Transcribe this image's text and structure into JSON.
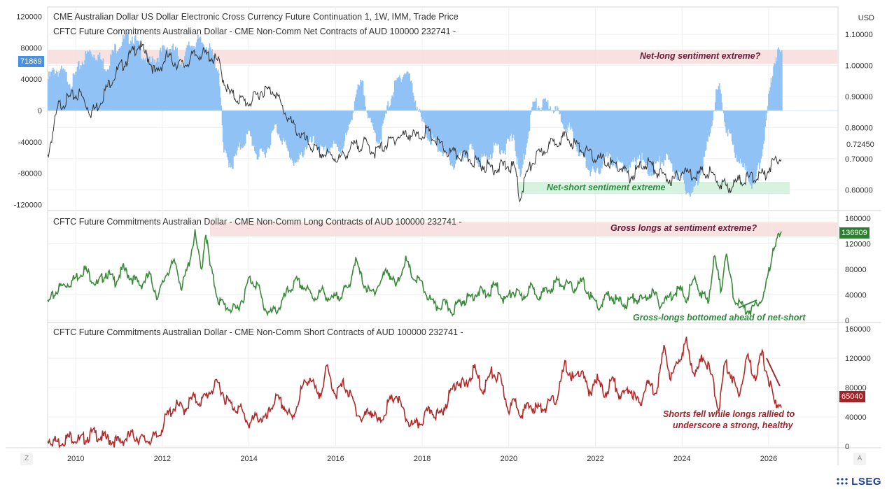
{
  "chart_data": [
    {
      "type": "bar",
      "panel": "net",
      "title": "CME Australian Dollar US Dollar Electronic Cross Currency Future Continuation 1, 1W, IMM, Trade Price",
      "subtitle": "CFTC Future Commitments Australian Dollar - CME Non-Comm Net Contracts of AUD 100000 232741 -",
      "left_axis": {
        "range": [
          -125000,
          125000
        ],
        "ticks": [
          "120000",
          "80000",
          "40000",
          "0",
          "-40000",
          "-80000",
          "-120000"
        ],
        "tick_values": [
          120000,
          80000,
          40000,
          0,
          -40000,
          -80000,
          -120000
        ]
      },
      "right_axis": {
        "label": "USD",
        "range": [
          0.54,
          1.17
        ],
        "ticks": [
          "1.10000",
          "1.00000",
          "0.90000",
          "0.80000",
          "0.70000",
          "0.60000"
        ],
        "tick_values": [
          1.1,
          1.0,
          0.9,
          0.8,
          0.7,
          0.6
        ]
      },
      "last_value_left": "71869",
      "last_value_right": "0.72450",
      "series": [
        {
          "name": "Net Contracts",
          "color": "#90c2f5",
          "x": [
            2009.35,
            2009.5,
            2009.7,
            2009.9,
            2010.1,
            2010.3,
            2010.5,
            2010.7,
            2010.9,
            2011.1,
            2011.3,
            2011.5,
            2011.7,
            2011.9,
            2012.1,
            2012.3,
            2012.45,
            2012.6,
            2012.8,
            2013.0,
            2013.15,
            2013.3,
            2013.4,
            2013.6,
            2013.8,
            2014.0,
            2014.2,
            2014.4,
            2014.6,
            2014.75,
            2014.9,
            2015.1,
            2015.3,
            2015.5,
            2015.7,
            2015.9,
            2016.1,
            2016.3,
            2016.45,
            2016.6,
            2016.8,
            2017.0,
            2017.2,
            2017.35,
            2017.5,
            2017.65,
            2017.8,
            2017.95,
            2018.1,
            2018.3,
            2018.5,
            2018.7,
            2018.9,
            2019.1,
            2019.3,
            2019.5,
            2019.7,
            2019.9,
            2020.1,
            2020.25,
            2020.4,
            2020.55,
            2020.7,
            2020.85,
            2021.0,
            2021.2,
            2021.4,
            2021.6,
            2021.8,
            2022.0,
            2022.2,
            2022.4,
            2022.6,
            2022.8,
            2023.0,
            2023.2,
            2023.4,
            2023.6,
            2023.8,
            2024.0,
            2024.2,
            2024.4,
            2024.6,
            2024.75,
            2024.85,
            2025.0,
            2025.2,
            2025.35,
            2025.5,
            2025.65,
            2025.8,
            2025.9,
            2026.0,
            2026.1,
            2026.2,
            2026.3
          ],
          "values": [
            40000,
            52000,
            48000,
            35000,
            60000,
            75000,
            70000,
            55000,
            80000,
            90000,
            95000,
            75000,
            60000,
            70000,
            82000,
            75000,
            60000,
            82000,
            88000,
            85000,
            70000,
            50000,
            -55000,
            -70000,
            -45000,
            -30000,
            -60000,
            -50000,
            -20000,
            -35000,
            -55000,
            -70000,
            -45000,
            -40000,
            -55000,
            -45000,
            -50000,
            -25000,
            20000,
            35000,
            -20000,
            -40000,
            5000,
            30000,
            45000,
            50000,
            20000,
            -10000,
            -30000,
            -45000,
            -55000,
            -70000,
            -60000,
            -50000,
            -65000,
            -60000,
            -45000,
            -50000,
            -30000,
            -90000,
            -40000,
            10000,
            5000,
            8000,
            5000,
            -10000,
            -25000,
            -50000,
            -70000,
            -85000,
            -60000,
            -65000,
            -70000,
            -75000,
            -55000,
            -80000,
            -70000,
            -60000,
            -75000,
            -90000,
            -110000,
            -80000,
            -40000,
            15000,
            30000,
            -20000,
            -50000,
            -70000,
            -80000,
            -100000,
            -60000,
            -30000,
            20000,
            60000,
            75000,
            71869
          ]
        },
        {
          "name": "Trade Price",
          "color": "#333333",
          "x": [
            2009.35,
            2009.6,
            2009.9,
            2010.1,
            2010.35,
            2010.5,
            2010.8,
            2011.0,
            2011.3,
            2011.45,
            2011.7,
            2011.85,
            2012.1,
            2012.3,
            2012.5,
            2012.7,
            2012.9,
            2013.1,
            2013.3,
            2013.4,
            2013.55,
            2013.8,
            2014.0,
            2014.3,
            2014.6,
            2014.75,
            2015.0,
            2015.3,
            2015.6,
            2015.9,
            2016.1,
            2016.4,
            2016.7,
            2016.9,
            2017.1,
            2017.4,
            2017.7,
            2017.9,
            2018.1,
            2018.3,
            2018.6,
            2018.9,
            2019.1,
            2019.4,
            2019.7,
            2019.9,
            2020.15,
            2020.25,
            2020.4,
            2020.6,
            2020.9,
            2021.1,
            2021.3,
            2021.6,
            2021.9,
            2022.1,
            2022.3,
            2022.6,
            2022.8,
            2023.0,
            2023.2,
            2023.5,
            2023.8,
            2024.0,
            2024.3,
            2024.6,
            2024.9,
            2025.1,
            2025.3,
            2025.6,
            2025.9,
            2026.1,
            2026.3
          ],
          "values": [
            0.72,
            0.88,
            0.91,
            0.92,
            0.86,
            0.88,
            0.96,
            1.0,
            1.05,
            1.08,
            1.03,
            0.98,
            1.04,
            1.02,
            1.01,
            1.04,
            1.05,
            1.04,
            1.02,
            0.97,
            0.92,
            0.9,
            0.89,
            0.93,
            0.93,
            0.88,
            0.82,
            0.77,
            0.73,
            0.72,
            0.71,
            0.75,
            0.76,
            0.73,
            0.75,
            0.78,
            0.79,
            0.78,
            0.8,
            0.77,
            0.73,
            0.72,
            0.71,
            0.69,
            0.68,
            0.69,
            0.68,
            0.58,
            0.66,
            0.71,
            0.75,
            0.77,
            0.78,
            0.75,
            0.72,
            0.71,
            0.7,
            0.68,
            0.65,
            0.68,
            0.7,
            0.66,
            0.64,
            0.67,
            0.66,
            0.67,
            0.63,
            0.62,
            0.64,
            0.65,
            0.66,
            0.7,
            0.7245
          ]
        }
      ],
      "annotations": [
        "Net-long sentiment extreme?",
        "Net-short sentiment extreme"
      ]
    },
    {
      "type": "line",
      "panel": "long",
      "title": "CFTC Future Commitments Australian Dollar - CME Non-Comm Long Contracts of AUD 100000 232741 -",
      "right_axis": {
        "range": [
          0,
          162000
        ],
        "ticks": [
          "160000",
          "120000",
          "80000",
          "40000",
          "0"
        ],
        "tick_values": [
          160000,
          120000,
          80000,
          40000,
          0
        ]
      },
      "last_value": "136909",
      "series": [
        {
          "name": "Long Contracts",
          "color": "#3a8a3a",
          "x": [
            2009.35,
            2009.6,
            2009.9,
            2010.2,
            2010.5,
            2010.7,
            2010.9,
            2011.1,
            2011.3,
            2011.5,
            2011.7,
            2011.9,
            2012.1,
            2012.3,
            2012.45,
            2012.6,
            2012.75,
            2012.9,
            2013.0,
            2013.1,
            2013.3,
            2013.5,
            2013.7,
            2013.9,
            2014.0,
            2014.2,
            2014.35,
            2014.5,
            2014.7,
            2014.9,
            2015.1,
            2015.3,
            2015.5,
            2015.7,
            2015.9,
            2016.1,
            2016.3,
            2016.45,
            2016.6,
            2016.8,
            2017.0,
            2017.2,
            2017.4,
            2017.6,
            2017.8,
            2017.95,
            2018.1,
            2018.3,
            2018.5,
            2018.7,
            2018.9,
            2019.1,
            2019.3,
            2019.5,
            2019.7,
            2019.9,
            2020.1,
            2020.3,
            2020.5,
            2020.7,
            2020.9,
            2021.1,
            2021.3,
            2021.5,
            2021.7,
            2021.9,
            2022.1,
            2022.3,
            2022.5,
            2022.7,
            2022.9,
            2023.1,
            2023.3,
            2023.5,
            2023.7,
            2023.9,
            2024.1,
            2024.3,
            2024.45,
            2024.6,
            2024.75,
            2024.9,
            2025.0,
            2025.2,
            2025.4,
            2025.6,
            2025.75,
            2025.9,
            2026.0,
            2026.1,
            2026.2,
            2026.3
          ],
          "values": [
            30000,
            55000,
            65000,
            85000,
            60000,
            80000,
            65000,
            85000,
            70000,
            60000,
            75000,
            40000,
            80000,
            95000,
            55000,
            90000,
            140000,
            80000,
            145000,
            90000,
            35000,
            25000,
            20000,
            45000,
            70000,
            60000,
            25000,
            15000,
            25000,
            50000,
            65000,
            55000,
            40000,
            50000,
            35000,
            45000,
            55000,
            100000,
            70000,
            45000,
            60000,
            85000,
            55000,
            100000,
            70000,
            65000,
            45000,
            25000,
            30000,
            20000,
            35000,
            40000,
            50000,
            45000,
            60000,
            35000,
            50000,
            40000,
            55000,
            45000,
            50000,
            65000,
            60000,
            55000,
            65000,
            40000,
            25000,
            45000,
            35000,
            30000,
            40000,
            35000,
            50000,
            30000,
            40000,
            55000,
            40000,
            70000,
            45000,
            35000,
            105000,
            50000,
            110000,
            40000,
            25000,
            20000,
            35000,
            45000,
            80000,
            120000,
            130000,
            136909
          ]
        }
      ],
      "annotations": [
        "Gross longs at sentiment extreme?",
        "Gross-longs bottomed ahead of net-short"
      ]
    },
    {
      "type": "line",
      "panel": "short",
      "title": "CFTC Future Commitments Australian Dollar - CME Non-Comm Short Contracts of AUD 100000 232741 -",
      "right_axis": {
        "range": [
          0,
          162000
        ],
        "ticks": [
          "160000",
          "120000",
          "80000",
          "40000",
          "0"
        ],
        "tick_values": [
          160000,
          120000,
          80000,
          40000,
          0
        ]
      },
      "last_value": "65040",
      "series": [
        {
          "name": "Short Contracts",
          "color": "#b02a2a",
          "x": [
            2009.35,
            2009.6,
            2009.9,
            2010.1,
            2010.4,
            2010.7,
            2011.0,
            2011.3,
            2011.6,
            2011.9,
            2012.1,
            2012.3,
            2012.5,
            2012.7,
            2012.9,
            2013.1,
            2013.3,
            2013.45,
            2013.6,
            2013.8,
            2014.0,
            2014.2,
            2014.4,
            2014.6,
            2014.8,
            2015.0,
            2015.2,
            2015.4,
            2015.6,
            2015.8,
            2016.0,
            2016.2,
            2016.4,
            2016.6,
            2016.8,
            2017.0,
            2017.2,
            2017.4,
            2017.6,
            2017.8,
            2018.0,
            2018.2,
            2018.4,
            2018.6,
            2018.8,
            2019.0,
            2019.2,
            2019.4,
            2019.6,
            2019.8,
            2020.0,
            2020.15,
            2020.3,
            2020.5,
            2020.7,
            2020.9,
            2021.1,
            2021.3,
            2021.5,
            2021.7,
            2021.85,
            2022.0,
            2022.2,
            2022.4,
            2022.6,
            2022.8,
            2023.0,
            2023.2,
            2023.4,
            2023.6,
            2023.75,
            2023.9,
            2024.1,
            2024.3,
            2024.5,
            2024.7,
            2024.85,
            2025.0,
            2025.15,
            2025.3,
            2025.5,
            2025.7,
            2025.85,
            2026.0,
            2026.15,
            2026.3
          ],
          "values": [
            15000,
            10000,
            18000,
            12000,
            22000,
            15000,
            10000,
            20000,
            12000,
            18000,
            45000,
            60000,
            55000,
            70000,
            65000,
            80000,
            90000,
            70000,
            60000,
            55000,
            35000,
            45000,
            40000,
            70000,
            60000,
            40000,
            80000,
            100000,
            70000,
            110000,
            75000,
            90000,
            65000,
            40000,
            55000,
            35000,
            60000,
            75000,
            45000,
            30000,
            40000,
            55000,
            45000,
            70000,
            95000,
            85000,
            110000,
            80000,
            105000,
            95000,
            55000,
            65000,
            50000,
            60000,
            55000,
            60000,
            70000,
            115000,
            95000,
            110000,
            70000,
            100000,
            75000,
            95000,
            70000,
            85000,
            60000,
            90000,
            80000,
            140000,
            95000,
            120000,
            145000,
            100000,
            130000,
            95000,
            55000,
            120000,
            100000,
            75000,
            125000,
            100000,
            130000,
            95000,
            60000,
            65040
          ]
        }
      ],
      "annotations": [
        "Shorts fell while longs rallied to",
        "underscore a strong, healthy"
      ]
    }
  ],
  "x_axis": {
    "range": [
      2009.35,
      2027.6
    ],
    "ticks": [
      "2010",
      "2012",
      "2014",
      "2016",
      "2018",
      "2020",
      "2022",
      "2024",
      "2026"
    ],
    "tick_values": [
      2010,
      2012,
      2014,
      2016,
      2018,
      2020,
      2022,
      2024,
      2026
    ]
  },
  "ui": {
    "zoom_button": "Z",
    "auto_button": "A",
    "brand": "LSEG"
  }
}
